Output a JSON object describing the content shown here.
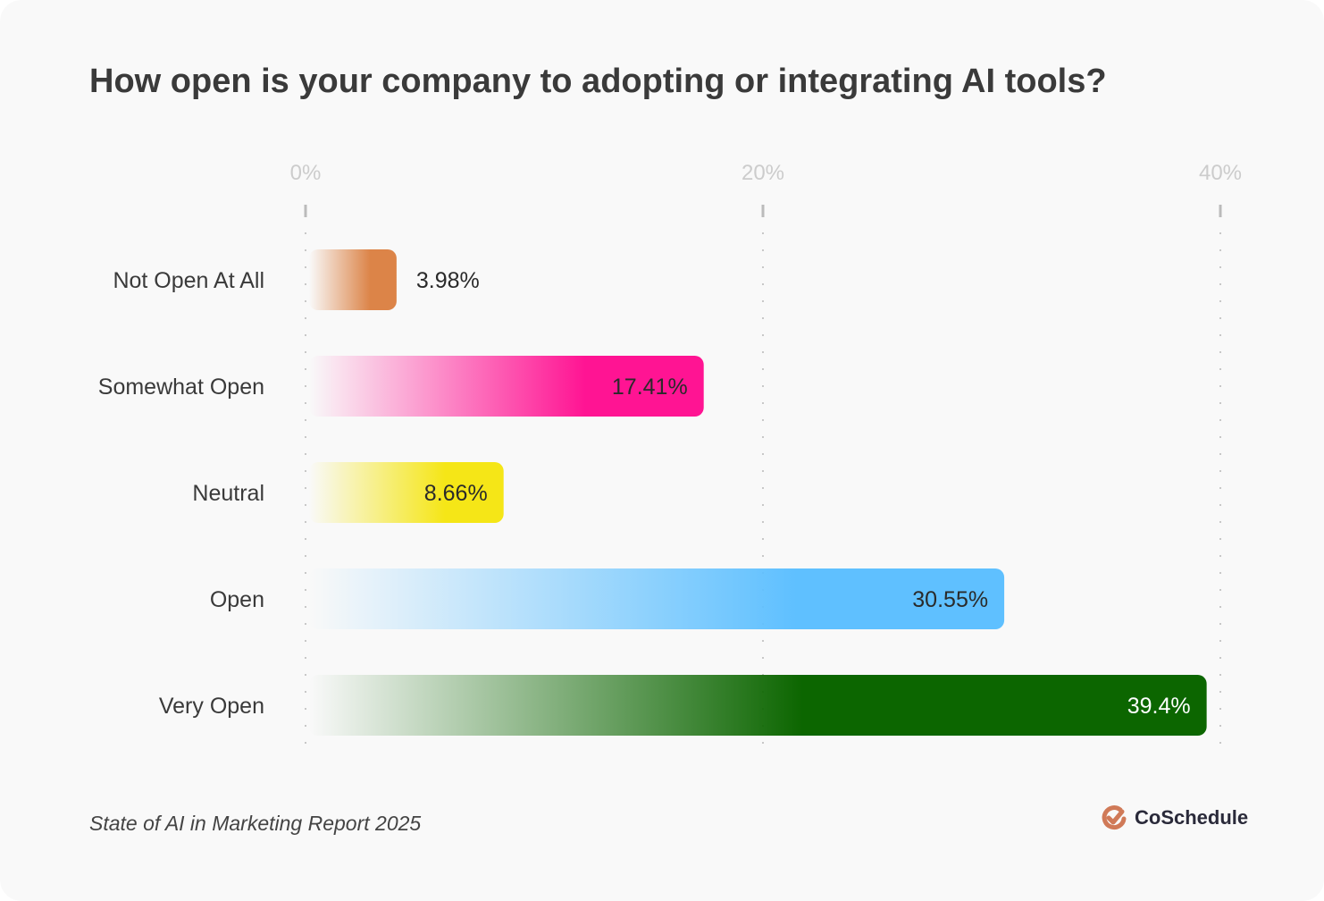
{
  "chart_data": {
    "type": "bar",
    "orientation": "horizontal",
    "title": "How open is your company to adopting or integrating AI tools?",
    "categories": [
      "Not Open At All",
      "Somewhat Open",
      "Neutral",
      "Open",
      "Very Open"
    ],
    "values": [
      3.98,
      17.41,
      8.66,
      30.55,
      39.4
    ],
    "value_labels": [
      "3.98%",
      "17.41%",
      "8.66%",
      "30.55%",
      "39.4%"
    ],
    "colors": [
      "#dc8448",
      "#ff1493",
      "#f5e617",
      "#5fc0ff",
      "#0c6600"
    ],
    "xlim": [
      0,
      40
    ],
    "x_ticks": [
      0,
      20,
      40
    ],
    "x_tick_labels": [
      "0%",
      "20%",
      "40%"
    ],
    "xlabel": "",
    "ylabel": "",
    "grid": true
  },
  "footer": {
    "source": "State of AI in Marketing Report 2025",
    "brand": "CoSchedule",
    "brand_color": "#d07a58"
  }
}
